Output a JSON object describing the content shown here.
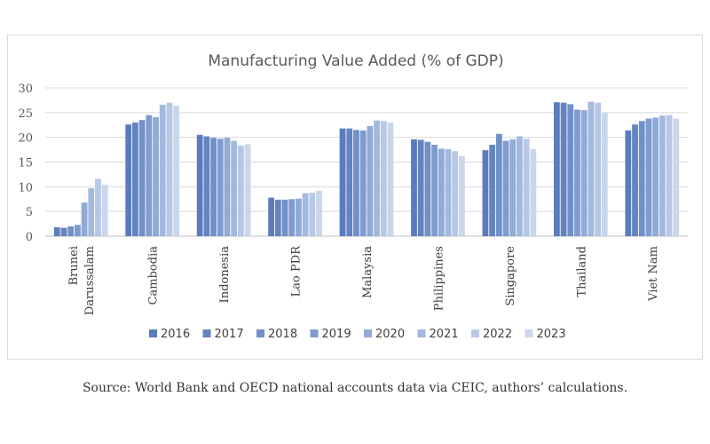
{
  "chart_data": {
    "type": "bar",
    "title": "Manufacturing Value Added (% of GDP)",
    "xlabel": "",
    "ylabel": "",
    "ylim": [
      0,
      30
    ],
    "yticks": [
      0,
      5,
      10,
      15,
      20,
      25,
      30
    ],
    "grid": true,
    "legend_position": "bottom",
    "categories": [
      [
        "Brunei",
        "Darussalam"
      ],
      [
        "Cambodia"
      ],
      [
        "Indonesia"
      ],
      [
        "Lao PDR"
      ],
      [
        "Malaysia"
      ],
      [
        "Philippines"
      ],
      [
        "Singapore"
      ],
      [
        "Thailand"
      ],
      [
        "Viet Nam"
      ]
    ],
    "series": [
      {
        "name": "2016",
        "color": "#5b7cbc",
        "values": [
          1.8,
          22.6,
          20.5,
          7.8,
          21.8,
          19.6,
          17.4,
          27.1,
          21.4
        ]
      },
      {
        "name": "2017",
        "color": "#6483c0",
        "values": [
          1.7,
          23.0,
          20.2,
          7.4,
          21.8,
          19.5,
          18.5,
          27.0,
          22.6
        ]
      },
      {
        "name": "2018",
        "color": "#7090c8",
        "values": [
          2.0,
          23.5,
          19.9,
          7.4,
          21.5,
          19.1,
          20.7,
          26.7,
          23.3
        ]
      },
      {
        "name": "2019",
        "color": "#7f9bcf",
        "values": [
          2.3,
          24.5,
          19.7,
          7.5,
          21.4,
          18.5,
          19.3,
          25.6,
          23.8
        ]
      },
      {
        "name": "2020",
        "color": "#91aad6",
        "values": [
          6.8,
          24.1,
          19.9,
          7.6,
          22.3,
          17.7,
          19.6,
          25.5,
          24.0
        ]
      },
      {
        "name": "2021",
        "color": "#a3b8dd",
        "values": [
          9.7,
          26.6,
          19.3,
          8.7,
          23.4,
          17.6,
          20.2,
          27.2,
          24.4
        ]
      },
      {
        "name": "2022",
        "color": "#b7c7e4",
        "values": [
          11.6,
          27.0,
          18.3,
          8.8,
          23.3,
          17.2,
          19.7,
          27.0,
          24.5
        ]
      },
      {
        "name": "2023",
        "color": "#cad6eb",
        "values": [
          10.4,
          26.4,
          18.6,
          9.2,
          23.0,
          16.2,
          17.6,
          25.0,
          23.8
        ]
      }
    ]
  },
  "caption": "Source: World Bank and OECD national accounts data via CEIC, authors’ calculations."
}
